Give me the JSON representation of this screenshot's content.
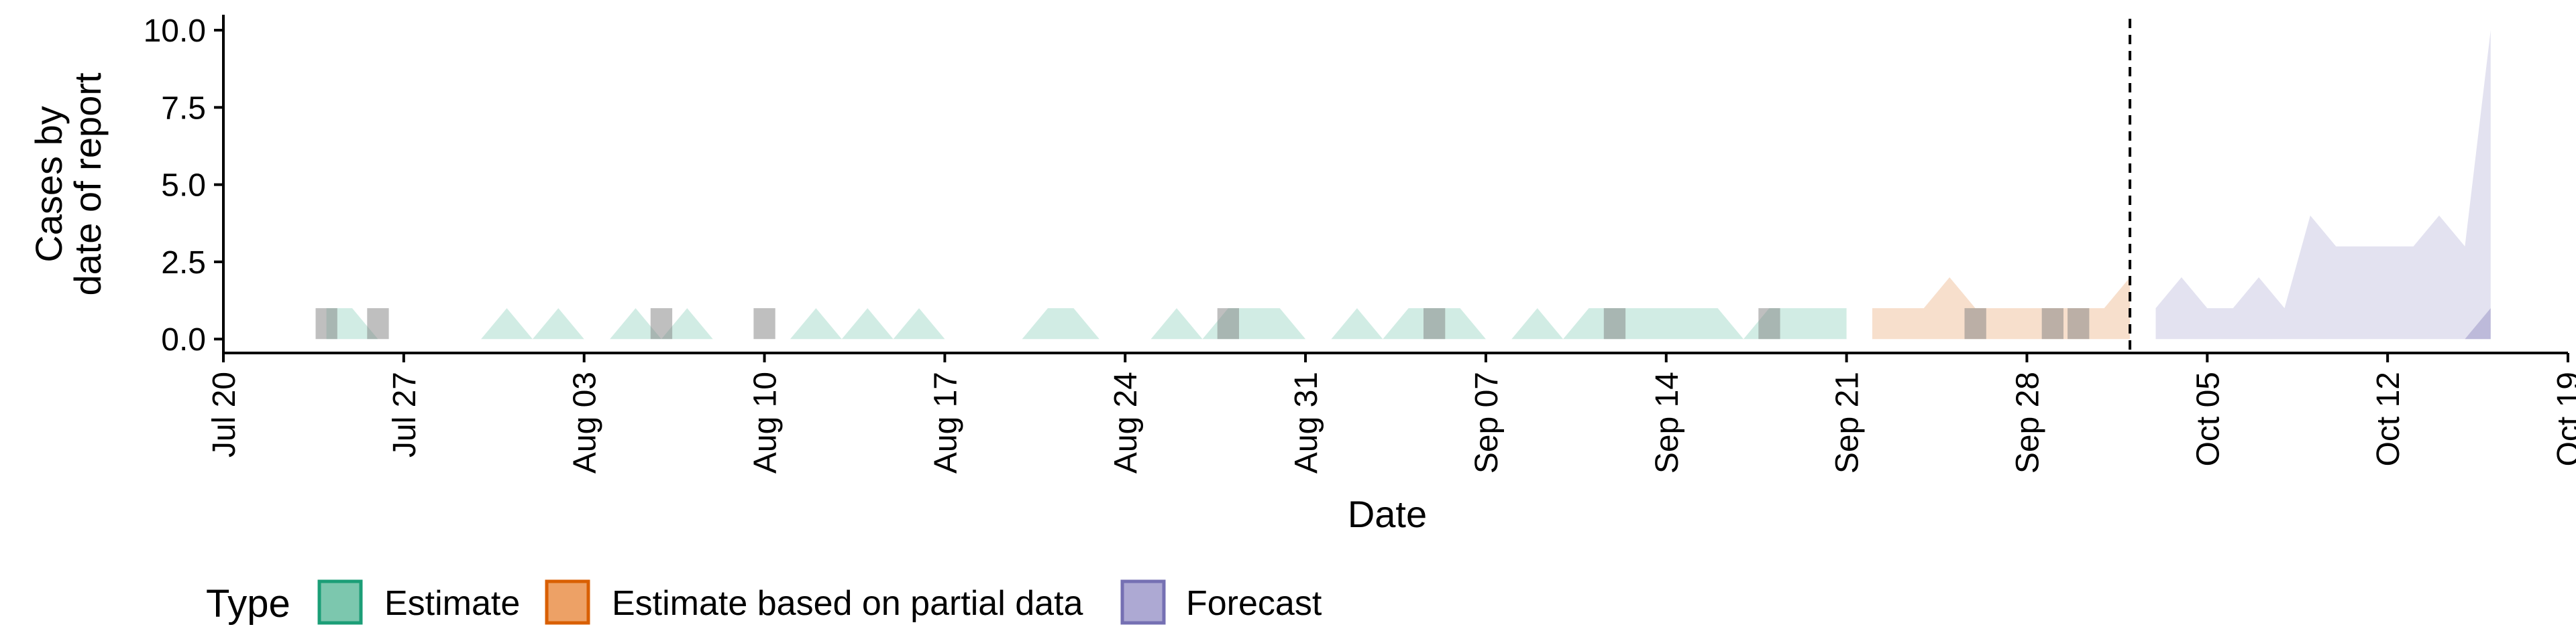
{
  "chart_data": {
    "type": "area",
    "xlabel": "Date",
    "ylabel_lines": [
      "Cases by",
      "date of report"
    ],
    "x_ticks": [
      "Jul 20",
      "Jul 27",
      "Aug 03",
      "Aug 10",
      "Aug 17",
      "Aug 24",
      "Aug 31",
      "Sep 07",
      "Sep 14",
      "Sep 21",
      "Sep 28",
      "Oct 05",
      "Oct 12",
      "Oct 19"
    ],
    "y_ticks": [
      0.0,
      2.5,
      5.0,
      7.5,
      10.0
    ],
    "y_tick_labels": [
      "0.0",
      "2.5",
      "5.0",
      "7.5",
      "10.0"
    ],
    "xlim": [
      "2020-07-20",
      "2020-10-19"
    ],
    "ylim": [
      -0.45,
      10.5
    ],
    "forecast_start_line": "2020-10-02",
    "legend": {
      "title": "Type",
      "position": "bottom",
      "items": [
        {
          "label": "Estimate",
          "fill": "#7CC7AE",
          "stroke": "#1B9E77"
        },
        {
          "label": "Estimate based on partial data",
          "fill": "#EDA166",
          "stroke": "#D95F02"
        },
        {
          "label": "Forecast",
          "fill": "#ADA9D3",
          "stroke": "#7570B3"
        }
      ]
    },
    "series": [
      {
        "name": "Estimate",
        "color": "#1B9E77",
        "points": [
          [
            "2020-07-24",
            1
          ],
          [
            "2020-07-25",
            1
          ],
          [
            "2020-07-26",
            0
          ],
          [
            "2020-07-27",
            0
          ],
          [
            "2020-07-28",
            0
          ],
          [
            "2020-07-29",
            0
          ],
          [
            "2020-07-30",
            0
          ],
          [
            "2020-07-31",
            1
          ],
          [
            "2020-08-01",
            0
          ],
          [
            "2020-08-02",
            1
          ],
          [
            "2020-08-03",
            0
          ],
          [
            "2020-08-04",
            0
          ],
          [
            "2020-08-05",
            1
          ],
          [
            "2020-08-06",
            0
          ],
          [
            "2020-08-07",
            1
          ],
          [
            "2020-08-08",
            0
          ],
          [
            "2020-08-09",
            0
          ],
          [
            "2020-08-10",
            0
          ],
          [
            "2020-08-11",
            0
          ],
          [
            "2020-08-12",
            1
          ],
          [
            "2020-08-13",
            0
          ],
          [
            "2020-08-14",
            1
          ],
          [
            "2020-08-15",
            0
          ],
          [
            "2020-08-16",
            1
          ],
          [
            "2020-08-17",
            0
          ],
          [
            "2020-08-18",
            0
          ],
          [
            "2020-08-19",
            0
          ],
          [
            "2020-08-20",
            0
          ],
          [
            "2020-08-21",
            1
          ],
          [
            "2020-08-22",
            1
          ],
          [
            "2020-08-23",
            0
          ],
          [
            "2020-08-24",
            0
          ],
          [
            "2020-08-25",
            0
          ],
          [
            "2020-08-26",
            1
          ],
          [
            "2020-08-27",
            0
          ],
          [
            "2020-08-28",
            1
          ],
          [
            "2020-08-29",
            1
          ],
          [
            "2020-08-30",
            1
          ],
          [
            "2020-08-31",
            0
          ],
          [
            "2020-09-01",
            0
          ],
          [
            "2020-09-02",
            1
          ],
          [
            "2020-09-03",
            0
          ],
          [
            "2020-09-04",
            1
          ],
          [
            "2020-09-05",
            1
          ],
          [
            "2020-09-06",
            1
          ],
          [
            "2020-09-07",
            0
          ],
          [
            "2020-09-08",
            0
          ],
          [
            "2020-09-09",
            1
          ],
          [
            "2020-09-10",
            0
          ],
          [
            "2020-09-11",
            1
          ],
          [
            "2020-09-12",
            1
          ],
          [
            "2020-09-13",
            1
          ],
          [
            "2020-09-14",
            1
          ],
          [
            "2020-09-15",
            1
          ],
          [
            "2020-09-16",
            1
          ],
          [
            "2020-09-17",
            0
          ],
          [
            "2020-09-18",
            1
          ],
          [
            "2020-09-19",
            1
          ],
          [
            "2020-09-20",
            1
          ],
          [
            "2020-09-21",
            1
          ]
        ]
      },
      {
        "name": "Estimate based on partial data",
        "color": "#D95F02",
        "points": [
          [
            "2020-09-22",
            1
          ],
          [
            "2020-09-23",
            1
          ],
          [
            "2020-09-24",
            1
          ],
          [
            "2020-09-25",
            2
          ],
          [
            "2020-09-26",
            1
          ],
          [
            "2020-09-27",
            1
          ],
          [
            "2020-09-28",
            1
          ],
          [
            "2020-09-29",
            1
          ],
          [
            "2020-09-30",
            1
          ],
          [
            "2020-10-01",
            1
          ],
          [
            "2020-10-02",
            2
          ]
        ]
      },
      {
        "name": "Forecast",
        "color": "#7570B3",
        "points": [
          [
            "2020-10-03",
            1
          ],
          [
            "2020-10-04",
            2
          ],
          [
            "2020-10-05",
            1
          ],
          [
            "2020-10-06",
            1
          ],
          [
            "2020-10-07",
            2
          ],
          [
            "2020-10-08",
            1
          ],
          [
            "2020-10-09",
            4
          ],
          [
            "2020-10-10",
            3
          ],
          [
            "2020-10-11",
            3
          ],
          [
            "2020-10-12",
            3
          ],
          [
            "2020-10-13",
            3
          ],
          [
            "2020-10-14",
            4
          ],
          [
            "2020-10-15",
            3
          ],
          [
            "2020-10-16",
            10
          ]
        ]
      }
    ],
    "forecast_inner_band": [
      [
        "2020-10-15",
        0
      ],
      [
        "2020-10-16",
        1
      ]
    ],
    "observed_cases": [
      [
        "2020-07-24",
        1
      ],
      [
        "2020-07-26",
        1
      ],
      [
        "2020-08-06",
        1
      ],
      [
        "2020-08-10",
        1
      ],
      [
        "2020-08-28",
        1
      ],
      [
        "2020-09-05",
        1
      ],
      [
        "2020-09-12",
        1
      ],
      [
        "2020-09-18",
        1
      ],
      [
        "2020-09-26",
        1
      ],
      [
        "2020-09-29",
        1
      ],
      [
        "2020-09-30",
        1
      ]
    ]
  }
}
